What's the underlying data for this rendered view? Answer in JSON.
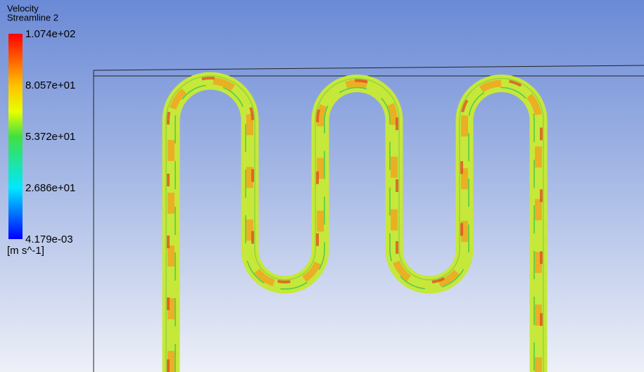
{
  "legend": {
    "title": "Velocity",
    "subtitle": "Streamline 2",
    "ticks": [
      "1.074e+02",
      "8.057e+01",
      "5.372e+01",
      "2.686e+01",
      "4.179e-03"
    ],
    "units": "[m s^-1]"
  }
}
